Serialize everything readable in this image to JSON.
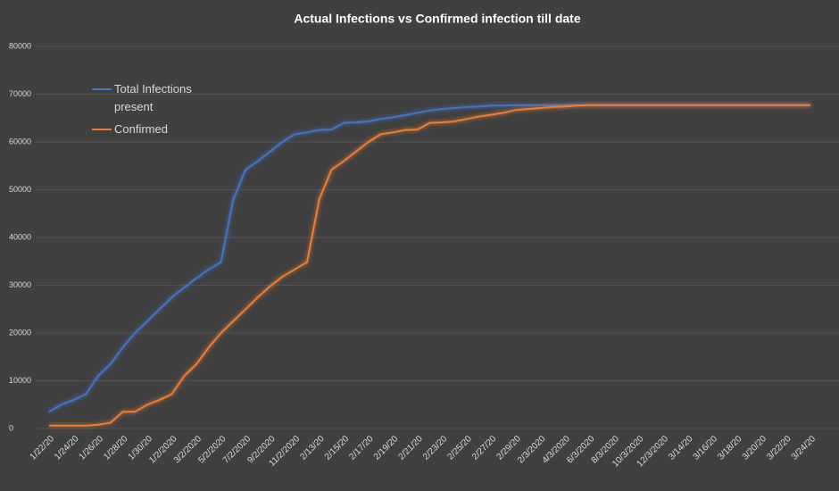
{
  "chart_data": {
    "type": "line",
    "title": "Actual Infections vs Confirmed infection till date",
    "categories": [
      "1/22/20",
      null,
      "1/24/20",
      null,
      "1/26/20",
      null,
      "1/28/20",
      null,
      "1/30/20",
      null,
      "1/2/2020",
      null,
      "3/2/2020",
      null,
      "5/2/2020",
      null,
      "7/2/2020",
      null,
      "9/2/2020",
      null,
      "11/2/2020",
      null,
      "2/13/20",
      null,
      "2/15/20",
      null,
      "2/17/20",
      null,
      "2/19/20",
      null,
      "2/21/20",
      null,
      "2/23/20",
      null,
      "2/25/20",
      null,
      "2/27/20",
      null,
      "2/29/20",
      null,
      "2/3/2020",
      null,
      "4/3/2020",
      null,
      "6/3/2020",
      null,
      "8/3/2020",
      null,
      "10/3/2020",
      null,
      "12/3/2020",
      null,
      "3/14/20",
      null,
      "3/16/20",
      null,
      "3/18/20",
      null,
      "3/20/20",
      null,
      "3/22/20",
      null,
      "3/24/20"
    ],
    "series": [
      {
        "name": "Total Infections present",
        "color": "#4472c4",
        "values": [
          3500,
          5000,
          6000,
          7200,
          11000,
          13500,
          17000,
          20000,
          22500,
          25000,
          27500,
          29500,
          31500,
          33300,
          34800,
          48000,
          54200,
          56000,
          58000,
          60000,
          61600,
          62000,
          62500,
          62600,
          64000,
          64100,
          64300,
          64800,
          65200,
          65600,
          66100,
          66600,
          66900,
          67100,
          67300,
          67400,
          67600,
          67600,
          67700,
          67700,
          67700,
          67700,
          67700,
          67700,
          67700,
          67700,
          67700,
          67700,
          67700,
          67700,
          67700,
          67700,
          67700,
          67700,
          67700,
          67700,
          67700,
          67700,
          67700,
          67700,
          67700,
          67700,
          67700
        ]
      },
      {
        "name": "Confirmed",
        "color": "#ed7d31",
        "values": [
          600,
          600,
          600,
          600,
          800,
          1200,
          3500,
          3500,
          5000,
          6000,
          7200,
          11000,
          13500,
          17000,
          20000,
          22500,
          25000,
          27500,
          29800,
          31800,
          33300,
          34800,
          48000,
          54200,
          56000,
          58000,
          60000,
          61600,
          62000,
          62500,
          62600,
          64000,
          64100,
          64300,
          64800,
          65300,
          65700,
          66100,
          66700,
          66900,
          67100,
          67300,
          67400,
          67600,
          67700,
          67700,
          67700,
          67700,
          67700,
          67700,
          67700,
          67700,
          67700,
          67700,
          67700,
          67700,
          67700,
          67700,
          67700,
          67700,
          67700,
          67700,
          67700
        ]
      }
    ],
    "ylim": [
      0,
      80000
    ],
    "yticks": [
      0,
      10000,
      20000,
      30000,
      40000,
      50000,
      60000,
      70000,
      80000
    ],
    "grid": true
  }
}
